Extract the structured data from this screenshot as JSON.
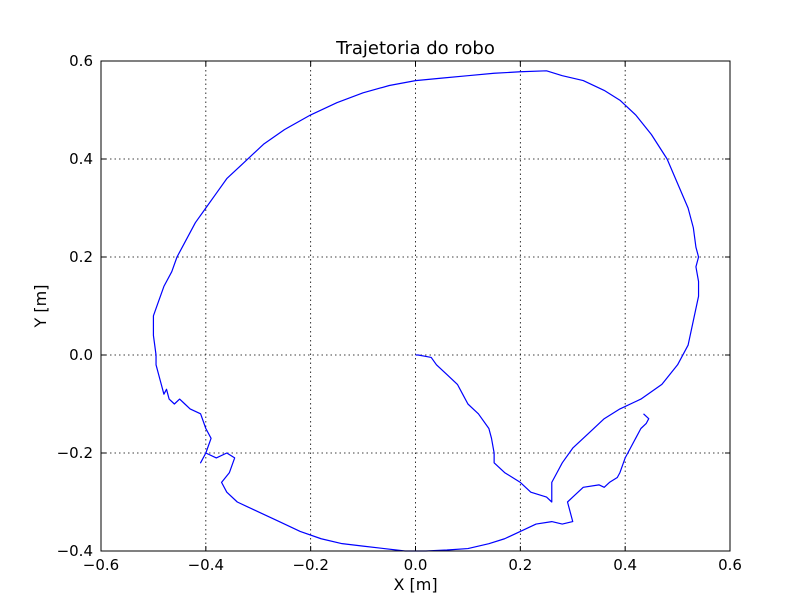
{
  "chart_data": {
    "type": "line",
    "title": "Trajetoria do robo",
    "xlabel": "X [m]",
    "ylabel": "Y [m]",
    "xlim": [
      -0.6,
      0.6
    ],
    "ylim": [
      -0.4,
      0.6
    ],
    "xticks": [
      -0.6,
      -0.4,
      -0.2,
      0.0,
      0.2,
      0.4,
      0.6
    ],
    "yticks": [
      -0.4,
      -0.2,
      0.0,
      0.2,
      0.4,
      0.6
    ],
    "xtick_labels": [
      "−0.6",
      "−0.4",
      "−0.2",
      "0.0",
      "0.2",
      "0.4",
      "0.6"
    ],
    "ytick_labels": [
      "−0.4",
      "−0.2",
      "0.0",
      "0.2",
      "0.4",
      "0.6"
    ],
    "grid": true,
    "color": "#0000ff",
    "series": [
      {
        "x": [
          0.0,
          0.005,
          0.02,
          0.03,
          0.04,
          0.06,
          0.08,
          0.09,
          0.1,
          0.11,
          0.12,
          0.14,
          0.145,
          0.15,
          0.15,
          0.17,
          0.2,
          0.22,
          0.25,
          0.26,
          0.26,
          0.27,
          0.28,
          0.3,
          0.33,
          0.36,
          0.39,
          0.43,
          0.47,
          0.5,
          0.52,
          0.53,
          0.54,
          0.54,
          0.535,
          0.54,
          0.535,
          0.53,
          0.52,
          0.5,
          0.48,
          0.45,
          0.42,
          0.39,
          0.36,
          0.32,
          0.28,
          0.25,
          0.2,
          0.15,
          0.1,
          0.05,
          0.0,
          -0.05,
          -0.1,
          -0.15,
          -0.2,
          -0.25,
          -0.29,
          -0.33,
          -0.36,
          -0.38,
          -0.4,
          -0.42,
          -0.44,
          -0.455,
          -0.465,
          -0.48,
          -0.49,
          -0.5,
          -0.5,
          -0.495,
          -0.495,
          -0.49,
          -0.485,
          -0.48,
          -0.475,
          -0.47,
          -0.46,
          -0.45,
          -0.44,
          -0.43,
          -0.41,
          -0.4,
          -0.39,
          -0.4,
          -0.41,
          -0.4,
          -0.38,
          -0.36,
          -0.345,
          -0.355,
          -0.37,
          -0.36,
          -0.34,
          -0.32,
          -0.3,
          -0.26,
          -0.22,
          -0.18,
          -0.14,
          -0.1,
          -0.06,
          -0.02,
          0.0,
          0.02,
          0.06,
          0.1,
          0.14,
          0.17,
          0.2,
          0.23,
          0.26,
          0.28,
          0.3,
          0.29,
          0.3,
          0.32,
          0.35,
          0.36,
          0.37,
          0.385,
          0.39,
          0.4,
          0.41,
          0.42,
          0.43,
          0.44,
          0.445,
          0.435
        ],
        "y": [
          0.0,
          0.0,
          -0.003,
          -0.005,
          -0.02,
          -0.04,
          -0.06,
          -0.08,
          -0.1,
          -0.11,
          -0.12,
          -0.15,
          -0.17,
          -0.2,
          -0.22,
          -0.24,
          -0.26,
          -0.28,
          -0.29,
          -0.3,
          -0.26,
          -0.24,
          -0.22,
          -0.19,
          -0.16,
          -0.13,
          -0.11,
          -0.09,
          -0.06,
          -0.02,
          0.02,
          0.07,
          0.12,
          0.15,
          0.18,
          0.2,
          0.22,
          0.26,
          0.3,
          0.35,
          0.4,
          0.45,
          0.49,
          0.52,
          0.54,
          0.56,
          0.57,
          0.58,
          0.578,
          0.575,
          0.57,
          0.565,
          0.56,
          0.55,
          0.535,
          0.515,
          0.49,
          0.46,
          0.43,
          0.39,
          0.36,
          0.33,
          0.3,
          0.27,
          0.23,
          0.2,
          0.17,
          0.14,
          0.11,
          0.08,
          0.04,
          0.0,
          -0.02,
          -0.04,
          -0.06,
          -0.08,
          -0.07,
          -0.09,
          -0.1,
          -0.09,
          -0.1,
          -0.11,
          -0.12,
          -0.15,
          -0.17,
          -0.2,
          -0.22,
          -0.2,
          -0.21,
          -0.2,
          -0.21,
          -0.24,
          -0.26,
          -0.28,
          -0.3,
          -0.31,
          -0.32,
          -0.34,
          -0.36,
          -0.375,
          -0.385,
          -0.39,
          -0.395,
          -0.4,
          -0.4,
          -0.4,
          -0.398,
          -0.395,
          -0.385,
          -0.375,
          -0.36,
          -0.345,
          -0.34,
          -0.345,
          -0.34,
          -0.3,
          -0.29,
          -0.27,
          -0.265,
          -0.27,
          -0.26,
          -0.25,
          -0.24,
          -0.21,
          -0.19,
          -0.17,
          -0.15,
          -0.14,
          -0.13,
          -0.12
        ]
      }
    ]
  }
}
